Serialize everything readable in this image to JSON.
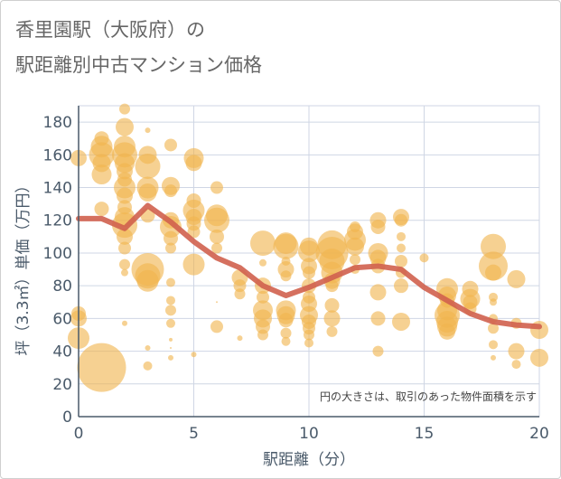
{
  "title_line1": "香里園駅（大阪府）の",
  "title_line2": "駅距離別中古マンション価格",
  "chart_data": {
    "type": "scatter",
    "xlabel": "駅距離（分）",
    "ylabel": "坪（3.3㎡）単価（万円）",
    "xlim": [
      0,
      20
    ],
    "ylim": [
      0,
      190
    ],
    "xticks": [
      0,
      5,
      10,
      15,
      20
    ],
    "yticks": [
      0,
      20,
      40,
      60,
      80,
      100,
      120,
      140,
      160,
      180
    ],
    "grid": true,
    "annotation": "円の大きさは、取引のあった物件面積を示す",
    "colors": {
      "bubble": "#f0b44f",
      "line": "#d0614e",
      "axis": "#4a5a6a",
      "grid": "#cfd6e4"
    },
    "bubbles": [
      {
        "x": 0,
        "y": 158,
        "s": 9
      },
      {
        "x": 0,
        "y": 60,
        "s": 9
      },
      {
        "x": 0,
        "y": 48,
        "s": 12
      },
      {
        "x": 0,
        "y": 63,
        "s": 8
      },
      {
        "x": 1,
        "y": 170,
        "s": 8
      },
      {
        "x": 1,
        "y": 165,
        "s": 12
      },
      {
        "x": 1,
        "y": 160,
        "s": 14
      },
      {
        "x": 1,
        "y": 155,
        "s": 10
      },
      {
        "x": 1,
        "y": 148,
        "s": 11
      },
      {
        "x": 1,
        "y": 127,
        "s": 8
      },
      {
        "x": 1,
        "y": 30,
        "s": 27
      },
      {
        "x": 2,
        "y": 188,
        "s": 6
      },
      {
        "x": 2,
        "y": 177,
        "s": 10
      },
      {
        "x": 2,
        "y": 165,
        "s": 12
      },
      {
        "x": 2,
        "y": 160,
        "s": 14
      },
      {
        "x": 2,
        "y": 155,
        "s": 11
      },
      {
        "x": 2,
        "y": 150,
        "s": 9
      },
      {
        "x": 2,
        "y": 145,
        "s": 8
      },
      {
        "x": 2,
        "y": 140,
        "s": 12
      },
      {
        "x": 2,
        "y": 135,
        "s": 9
      },
      {
        "x": 2,
        "y": 128,
        "s": 8
      },
      {
        "x": 2,
        "y": 122,
        "s": 11
      },
      {
        "x": 2,
        "y": 117,
        "s": 14
      },
      {
        "x": 2,
        "y": 110,
        "s": 9
      },
      {
        "x": 2,
        "y": 103,
        "s": 7
      },
      {
        "x": 2,
        "y": 93,
        "s": 6
      },
      {
        "x": 2,
        "y": 88,
        "s": 4
      },
      {
        "x": 2,
        "y": 57,
        "s": 3
      },
      {
        "x": 3,
        "y": 175,
        "s": 3
      },
      {
        "x": 3,
        "y": 160,
        "s": 10
      },
      {
        "x": 3,
        "y": 153,
        "s": 14
      },
      {
        "x": 3,
        "y": 140,
        "s": 12
      },
      {
        "x": 3,
        "y": 137,
        "s": 10
      },
      {
        "x": 3,
        "y": 123,
        "s": 8
      },
      {
        "x": 3,
        "y": 90,
        "s": 18
      },
      {
        "x": 3,
        "y": 86,
        "s": 14
      },
      {
        "x": 3,
        "y": 83,
        "s": 12
      },
      {
        "x": 3,
        "y": 42,
        "s": 3
      },
      {
        "x": 3,
        "y": 31,
        "s": 5
      },
      {
        "x": 4,
        "y": 166,
        "s": 7
      },
      {
        "x": 4,
        "y": 141,
        "s": 10
      },
      {
        "x": 4,
        "y": 138,
        "s": 7
      },
      {
        "x": 4,
        "y": 120,
        "s": 9
      },
      {
        "x": 4,
        "y": 116,
        "s": 12
      },
      {
        "x": 4,
        "y": 109,
        "s": 8
      },
      {
        "x": 4,
        "y": 103,
        "s": 6
      },
      {
        "x": 4,
        "y": 82,
        "s": 5
      },
      {
        "x": 4,
        "y": 71,
        "s": 5
      },
      {
        "x": 4,
        "y": 65,
        "s": 6
      },
      {
        "x": 4,
        "y": 57,
        "s": 5
      },
      {
        "x": 4,
        "y": 47,
        "s": 2
      },
      {
        "x": 4,
        "y": 42,
        "s": 1
      },
      {
        "x": 4,
        "y": 36,
        "s": 3
      },
      {
        "x": 5,
        "y": 158,
        "s": 11
      },
      {
        "x": 5,
        "y": 155,
        "s": 9
      },
      {
        "x": 5,
        "y": 132,
        "s": 8
      },
      {
        "x": 5,
        "y": 126,
        "s": 12
      },
      {
        "x": 5,
        "y": 122,
        "s": 9
      },
      {
        "x": 5,
        "y": 118,
        "s": 8
      },
      {
        "x": 5,
        "y": 113,
        "s": 7
      },
      {
        "x": 5,
        "y": 93,
        "s": 12
      },
      {
        "x": 5,
        "y": 38,
        "s": 3
      },
      {
        "x": 6,
        "y": 140,
        "s": 7
      },
      {
        "x": 6,
        "y": 123,
        "s": 12
      },
      {
        "x": 6,
        "y": 120,
        "s": 14
      },
      {
        "x": 6,
        "y": 110,
        "s": 8
      },
      {
        "x": 6,
        "y": 103,
        "s": 6
      },
      {
        "x": 6,
        "y": 55,
        "s": 7
      },
      {
        "x": 6,
        "y": 70,
        "s": 1
      },
      {
        "x": 7,
        "y": 85,
        "s": 9
      },
      {
        "x": 7,
        "y": 80,
        "s": 7
      },
      {
        "x": 7,
        "y": 75,
        "s": 6
      },
      {
        "x": 7,
        "y": 48,
        "s": 3
      },
      {
        "x": 8,
        "y": 106,
        "s": 14
      },
      {
        "x": 8,
        "y": 94,
        "s": 4
      },
      {
        "x": 8,
        "y": 80,
        "s": 9
      },
      {
        "x": 8,
        "y": 73,
        "s": 7
      },
      {
        "x": 8,
        "y": 65,
        "s": 11
      },
      {
        "x": 8,
        "y": 60,
        "s": 10
      },
      {
        "x": 8,
        "y": 55,
        "s": 8
      },
      {
        "x": 8,
        "y": 50,
        "s": 6
      },
      {
        "x": 9,
        "y": 106,
        "s": 12
      },
      {
        "x": 9,
        "y": 104,
        "s": 14
      },
      {
        "x": 9,
        "y": 95,
        "s": 5
      },
      {
        "x": 9,
        "y": 90,
        "s": 9
      },
      {
        "x": 9,
        "y": 86,
        "s": 6
      },
      {
        "x": 9,
        "y": 65,
        "s": 11
      },
      {
        "x": 9,
        "y": 62,
        "s": 10
      },
      {
        "x": 9,
        "y": 59,
        "s": 8
      },
      {
        "x": 9,
        "y": 51,
        "s": 6
      },
      {
        "x": 9,
        "y": 46,
        "s": 5
      },
      {
        "x": 10,
        "y": 104,
        "s": 10
      },
      {
        "x": 10,
        "y": 101,
        "s": 12
      },
      {
        "x": 10,
        "y": 92,
        "s": 9
      },
      {
        "x": 10,
        "y": 88,
        "s": 7
      },
      {
        "x": 10,
        "y": 80,
        "s": 8
      },
      {
        "x": 10,
        "y": 73,
        "s": 7
      },
      {
        "x": 10,
        "y": 69,
        "s": 9
      },
      {
        "x": 10,
        "y": 62,
        "s": 10
      },
      {
        "x": 10,
        "y": 58,
        "s": 8
      },
      {
        "x": 10,
        "y": 54,
        "s": 7
      },
      {
        "x": 10,
        "y": 50,
        "s": 6
      },
      {
        "x": 10,
        "y": 45,
        "s": 5
      },
      {
        "x": 11,
        "y": 105,
        "s": 16
      },
      {
        "x": 11,
        "y": 100,
        "s": 18
      },
      {
        "x": 11,
        "y": 95,
        "s": 14
      },
      {
        "x": 11,
        "y": 88,
        "s": 12
      },
      {
        "x": 11,
        "y": 83,
        "s": 9
      },
      {
        "x": 11,
        "y": 80,
        "s": 7
      },
      {
        "x": 11,
        "y": 68,
        "s": 8
      },
      {
        "x": 11,
        "y": 60,
        "s": 9
      },
      {
        "x": 11,
        "y": 52,
        "s": 6
      },
      {
        "x": 12,
        "y": 116,
        "s": 6
      },
      {
        "x": 12,
        "y": 113,
        "s": 9
      },
      {
        "x": 12,
        "y": 108,
        "s": 12
      },
      {
        "x": 12,
        "y": 104,
        "s": 10
      },
      {
        "x": 12,
        "y": 96,
        "s": 6
      },
      {
        "x": 12,
        "y": 90,
        "s": 5
      },
      {
        "x": 13,
        "y": 120,
        "s": 9
      },
      {
        "x": 13,
        "y": 116,
        "s": 8
      },
      {
        "x": 13,
        "y": 100,
        "s": 11
      },
      {
        "x": 13,
        "y": 97,
        "s": 9
      },
      {
        "x": 13,
        "y": 92,
        "s": 8
      },
      {
        "x": 13,
        "y": 76,
        "s": 9
      },
      {
        "x": 13,
        "y": 60,
        "s": 8
      },
      {
        "x": 13,
        "y": 40,
        "s": 6
      },
      {
        "x": 14,
        "y": 122,
        "s": 9
      },
      {
        "x": 14,
        "y": 120,
        "s": 7
      },
      {
        "x": 14,
        "y": 110,
        "s": 5
      },
      {
        "x": 14,
        "y": 103,
        "s": 5
      },
      {
        "x": 14,
        "y": 95,
        "s": 7
      },
      {
        "x": 14,
        "y": 88,
        "s": 6
      },
      {
        "x": 14,
        "y": 80,
        "s": 8
      },
      {
        "x": 14,
        "y": 58,
        "s": 10
      },
      {
        "x": 15,
        "y": 97,
        "s": 5
      },
      {
        "x": 16,
        "y": 78,
        "s": 12
      },
      {
        "x": 16,
        "y": 74,
        "s": 10
      },
      {
        "x": 16,
        "y": 71,
        "s": 8
      },
      {
        "x": 16,
        "y": 65,
        "s": 11
      },
      {
        "x": 16,
        "y": 62,
        "s": 14
      },
      {
        "x": 16,
        "y": 58,
        "s": 12
      },
      {
        "x": 16,
        "y": 55,
        "s": 11
      },
      {
        "x": 16,
        "y": 52,
        "s": 9
      },
      {
        "x": 17,
        "y": 78,
        "s": 9
      },
      {
        "x": 17,
        "y": 72,
        "s": 11
      },
      {
        "x": 17,
        "y": 70,
        "s": 8
      },
      {
        "x": 17,
        "y": 66,
        "s": 7
      },
      {
        "x": 18,
        "y": 104,
        "s": 14
      },
      {
        "x": 18,
        "y": 92,
        "s": 16
      },
      {
        "x": 18,
        "y": 88,
        "s": 9
      },
      {
        "x": 18,
        "y": 73,
        "s": 5
      },
      {
        "x": 18,
        "y": 70,
        "s": 4
      },
      {
        "x": 18,
        "y": 60,
        "s": 5
      },
      {
        "x": 18,
        "y": 54,
        "s": 6
      },
      {
        "x": 18,
        "y": 44,
        "s": 5
      },
      {
        "x": 18,
        "y": 36,
        "s": 3
      },
      {
        "x": 19,
        "y": 84,
        "s": 10
      },
      {
        "x": 19,
        "y": 57,
        "s": 6
      },
      {
        "x": 19,
        "y": 40,
        "s": 9
      },
      {
        "x": 19,
        "y": 32,
        "s": 5
      },
      {
        "x": 20,
        "y": 53,
        "s": 10
      },
      {
        "x": 20,
        "y": 36,
        "s": 10
      }
    ],
    "trend": {
      "x": [
        0,
        1,
        2,
        3,
        4,
        5,
        6,
        7,
        8,
        9,
        10,
        11,
        12,
        13,
        14,
        15,
        16,
        17,
        18,
        19,
        20
      ],
      "y": [
        121,
        121,
        115,
        129,
        119,
        107,
        97,
        91,
        80,
        74,
        79,
        85,
        91,
        92,
        90,
        79,
        71,
        63,
        58,
        56,
        55
      ]
    }
  }
}
